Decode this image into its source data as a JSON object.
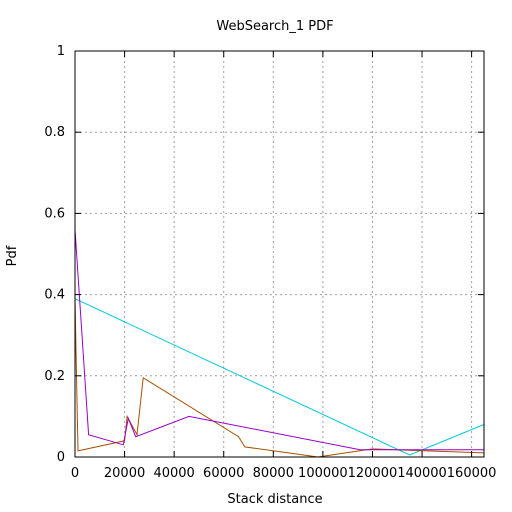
{
  "chart_data": {
    "type": "line",
    "title": "WebSearch_1 PDF",
    "xlabel": "Stack distance",
    "ylabel": "Pdf",
    "xlim": [
      0,
      165000
    ],
    "ylim": [
      0,
      1
    ],
    "x_ticks": [
      0,
      20000,
      40000,
      60000,
      80000,
      100000,
      120000,
      140000,
      160000
    ],
    "x_tick_labels": [
      "0",
      "20000",
      "40000",
      "60000",
      "80000",
      "100000",
      "120000",
      "140000",
      "160000"
    ],
    "y_ticks": [
      0,
      0.2,
      0.4,
      0.6,
      0.8,
      1
    ],
    "y_tick_labels": [
      "0",
      "0.2",
      "0.4",
      "0.6",
      "0.8",
      "1"
    ],
    "grid": true,
    "series": [
      {
        "color": "#00c8d8",
        "x": [
          0,
          135000,
          165000
        ],
        "y": [
          0.39,
          0.005,
          0.08
        ]
      },
      {
        "color": "#a85000",
        "x": [
          0,
          1200,
          20000,
          21000,
          25000,
          27500,
          66000,
          68500,
          98000,
          120000,
          165000
        ],
        "y": [
          0.39,
          0.015,
          0.04,
          0.1,
          0.055,
          0.195,
          0.05,
          0.025,
          0.0,
          0.02,
          0.01
        ]
      },
      {
        "color": "#9900cc",
        "x": [
          0,
          5500,
          19500,
          21500,
          24500,
          46000,
          115000,
          165000
        ],
        "y": [
          0.56,
          0.055,
          0.03,
          0.095,
          0.05,
          0.1,
          0.018,
          0.018
        ]
      }
    ]
  }
}
